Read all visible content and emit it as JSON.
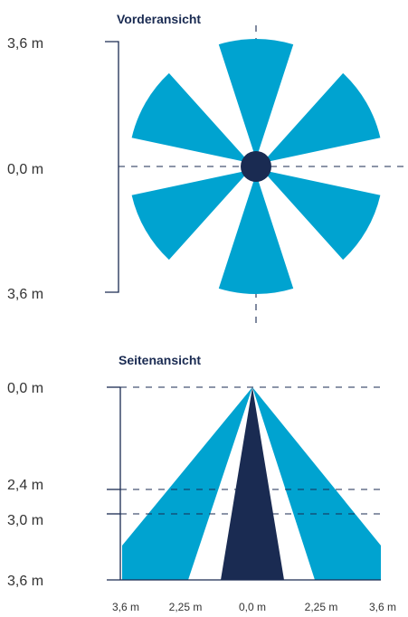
{
  "colors": {
    "cone": "#00a3d0",
    "center": "#1a2b52",
    "axis": "#1a2b52",
    "text": "#333333"
  },
  "front_view": {
    "title": "Vorderansicht",
    "y_labels": {
      "top": "3,6 m",
      "center": "0,0 m",
      "bottom": "3,6 m"
    },
    "lobe_count": 6,
    "lobe_angles_deg": [
      0,
      60,
      120,
      180,
      240,
      300
    ],
    "lobe_half_width_deg": 17
  },
  "side_view": {
    "title": "Seitenansicht",
    "y_labels": [
      "0,0 m",
      "2,4 m",
      "3,0 m",
      "3,6 m"
    ],
    "x_labels": [
      "3,6 m",
      "2,25 m",
      "0,0 m",
      "2,25 m",
      "3,6 m"
    ]
  }
}
